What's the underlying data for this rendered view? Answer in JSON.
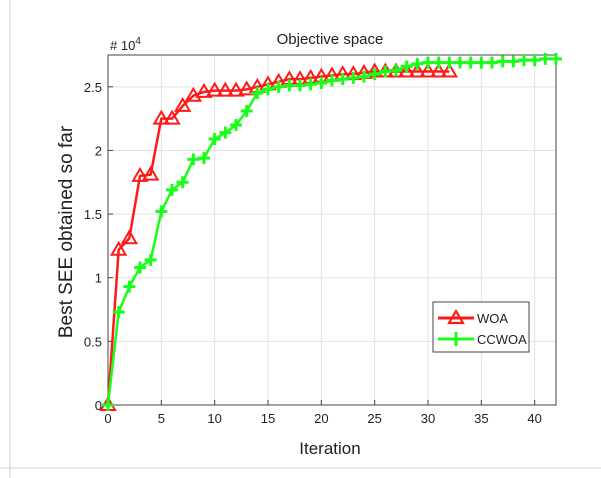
{
  "chart_data": {
    "type": "line",
    "title": "Objective space",
    "xlabel": "Iteration",
    "ylabel": "Best SEE obtained so far",
    "y_multiplier_label": "# 10",
    "y_multiplier_exponent": "4",
    "xlim": [
      0,
      42
    ],
    "ylim": [
      0,
      2.75
    ],
    "xticks": [
      0,
      5,
      10,
      15,
      20,
      25,
      30,
      35,
      40
    ],
    "yticks": [
      0,
      0.5,
      1,
      1.5,
      2,
      2.5
    ],
    "ytick_labels": [
      "0",
      "0.5",
      "1",
      "1.5",
      "2",
      "2.5"
    ],
    "grid": true,
    "legend_position": "lower-right",
    "series": [
      {
        "name": "WOA",
        "color": "#ff1a1a",
        "marker": "triangle",
        "x": [
          0,
          1,
          2,
          3,
          4,
          5,
          6,
          7,
          8,
          9,
          10,
          11,
          12,
          13,
          14,
          15,
          16,
          17,
          18,
          19,
          20,
          21,
          22,
          23,
          24,
          25,
          26,
          27,
          28,
          29,
          30,
          31,
          32
        ],
        "values": [
          0,
          1.22,
          1.31,
          1.8,
          1.81,
          2.25,
          2.25,
          2.35,
          2.43,
          2.46,
          2.47,
          2.47,
          2.47,
          2.48,
          2.5,
          2.52,
          2.54,
          2.56,
          2.56,
          2.57,
          2.58,
          2.59,
          2.6,
          2.6,
          2.61,
          2.62,
          2.62,
          2.62,
          2.62,
          2.62,
          2.62,
          2.62,
          2.62
        ]
      },
      {
        "name": "CCWOA",
        "color": "#1aff1a",
        "marker": "plus",
        "x": [
          0,
          1,
          2,
          3,
          4,
          5,
          6,
          7,
          8,
          9,
          10,
          11,
          12,
          13,
          14,
          15,
          16,
          17,
          18,
          19,
          20,
          21,
          22,
          23,
          24,
          25,
          26,
          27,
          28,
          29,
          30,
          31,
          32,
          33,
          34,
          35,
          36,
          37,
          38,
          39,
          40,
          41,
          42
        ],
        "values": [
          0,
          0.73,
          0.93,
          1.08,
          1.14,
          1.52,
          1.69,
          1.75,
          1.93,
          1.94,
          2.09,
          2.14,
          2.2,
          2.31,
          2.45,
          2.48,
          2.5,
          2.51,
          2.51,
          2.52,
          2.53,
          2.55,
          2.56,
          2.57,
          2.58,
          2.6,
          2.62,
          2.63,
          2.66,
          2.68,
          2.69,
          2.69,
          2.69,
          2.69,
          2.69,
          2.69,
          2.69,
          2.7,
          2.7,
          2.71,
          2.71,
          2.72,
          2.72
        ]
      }
    ]
  }
}
